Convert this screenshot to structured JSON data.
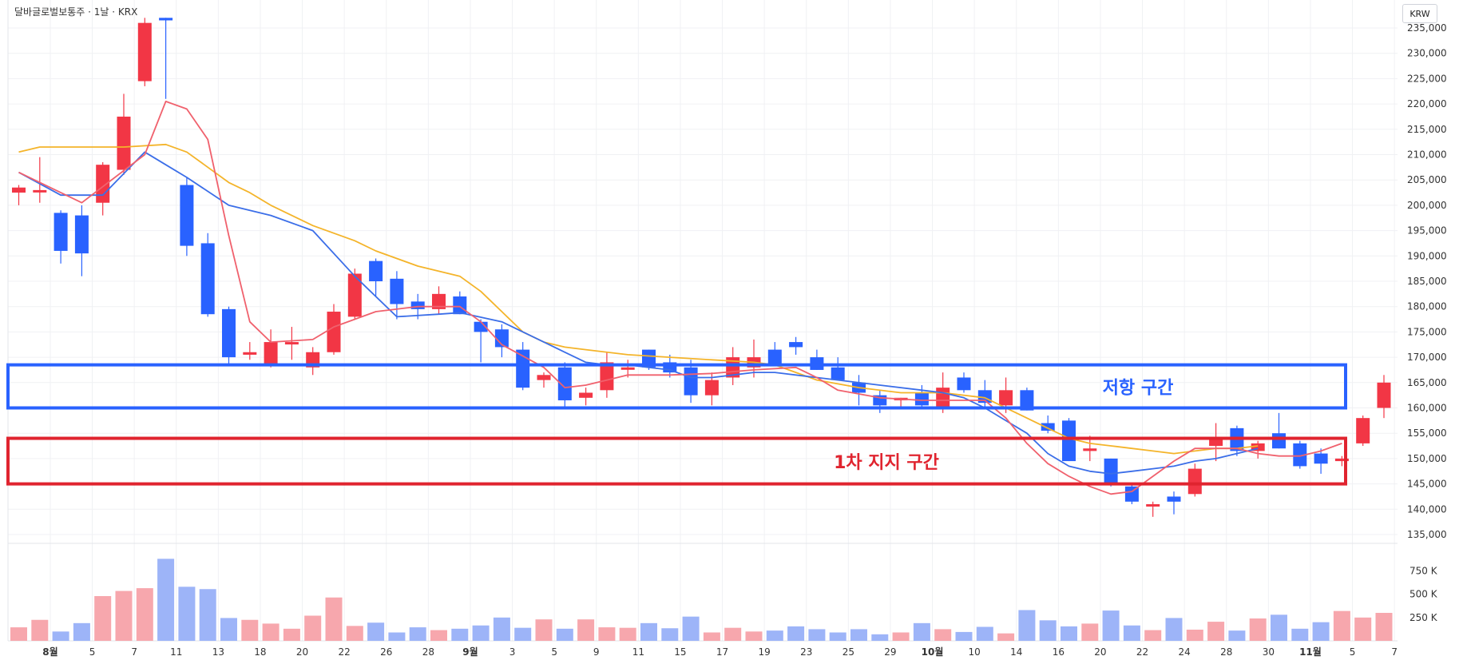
{
  "header": {
    "title": "달바글로벌보통주 · 1날 · KRX",
    "currency": "KRW"
  },
  "colors": {
    "up": "#f23645",
    "down": "#2962ff",
    "vol_up": "#f7a7ad",
    "vol_down": "#9db4f8",
    "ma_red": "#f0616d",
    "ma_blue": "#3b6ee8",
    "ma_yellow": "#f4b42a"
  },
  "chart_data": {
    "type": "candlestick",
    "ylim": [
      133000,
      237000
    ],
    "y_ticks": [
      "235,000",
      "230,000",
      "225,000",
      "220,000",
      "215,000",
      "210,000",
      "205,000",
      "200,000",
      "195,000",
      "190,000",
      "185,000",
      "180,000",
      "175,000",
      "170,000",
      "165,000",
      "160,000",
      "155,000",
      "150,000",
      "145,000",
      "140,000",
      "135,000"
    ],
    "volume_ticks": [
      "750 K",
      "500 K",
      "250 K"
    ],
    "x_ticks": [
      {
        "label": "8월",
        "bold": true,
        "i": 1.5
      },
      {
        "label": "5",
        "i": 3.5
      },
      {
        "label": "7",
        "i": 5.5
      },
      {
        "label": "11",
        "i": 7.5
      },
      {
        "label": "13",
        "i": 9.5
      },
      {
        "label": "18",
        "i": 11.5
      },
      {
        "label": "20",
        "i": 13.5
      },
      {
        "label": "22",
        "i": 15.5
      },
      {
        "label": "26",
        "i": 17.5
      },
      {
        "label": "28",
        "i": 19.5
      },
      {
        "label": "9월",
        "bold": true,
        "i": 21.5
      },
      {
        "label": "3",
        "i": 23.5
      },
      {
        "label": "5",
        "i": 25.5
      },
      {
        "label": "9",
        "i": 27.5
      },
      {
        "label": "11",
        "i": 29.5
      },
      {
        "label": "15",
        "i": 31.5
      },
      {
        "label": "17",
        "i": 33.5
      },
      {
        "label": "19",
        "i": 35.5
      },
      {
        "label": "23",
        "i": 37.5
      },
      {
        "label": "25",
        "i": 39.5
      },
      {
        "label": "29",
        "i": 41.5
      },
      {
        "label": "10월",
        "bold": true,
        "i": 43.5
      },
      {
        "label": "10",
        "i": 45.5
      },
      {
        "label": "14",
        "i": 47.5
      },
      {
        "label": "16",
        "i": 49.5
      },
      {
        "label": "20",
        "i": 51.5
      },
      {
        "label": "22",
        "i": 53.5
      },
      {
        "label": "24",
        "i": 55.5
      },
      {
        "label": "28",
        "i": 57.5
      },
      {
        "label": "30",
        "i": 59.5
      },
      {
        "label": "11월",
        "bold": true,
        "i": 61.5
      },
      {
        "label": "5",
        "i": 63.5
      },
      {
        "label": "7",
        "i": 65.5
      }
    ],
    "candles": [
      [
        202500,
        204000,
        200000,
        203500
      ],
      [
        203000,
        209500,
        200500,
        203000
      ],
      [
        198500,
        199000,
        188500,
        191000
      ],
      [
        198000,
        200000,
        186000,
        190500
      ],
      [
        200500,
        208500,
        198000,
        208000
      ],
      [
        207000,
        222000,
        206000,
        217500
      ],
      [
        224500,
        237000,
        223500,
        236000
      ],
      [
        237000,
        237000,
        221000,
        236500
      ],
      [
        204000,
        205500,
        190000,
        192000
      ],
      [
        192500,
        194500,
        178000,
        178500
      ],
      [
        179500,
        180000,
        168500,
        170000
      ],
      [
        170500,
        173000,
        169500,
        171000
      ],
      [
        168500,
        175500,
        168000,
        173000
      ],
      [
        173000,
        176000,
        169500,
        173000
      ],
      [
        168000,
        172000,
        166500,
        171000
      ],
      [
        171000,
        180500,
        170500,
        179000
      ],
      [
        178000,
        187500,
        177500,
        186500
      ],
      [
        189000,
        189500,
        182000,
        185000
      ],
      [
        185500,
        187000,
        177500,
        180500
      ],
      [
        181000,
        182500,
        177500,
        179500
      ],
      [
        179500,
        184000,
        178500,
        182500
      ],
      [
        182000,
        183000,
        178500,
        178500
      ],
      [
        177000,
        177500,
        169000,
        175000
      ],
      [
        175500,
        176500,
        170000,
        172000
      ],
      [
        171500,
        173000,
        163500,
        164000
      ],
      [
        165500,
        167000,
        164000,
        166500
      ],
      [
        168000,
        169000,
        160000,
        161500
      ],
      [
        162000,
        164000,
        160500,
        163000
      ],
      [
        163500,
        171000,
        162000,
        169000
      ],
      [
        168000,
        169500,
        166000,
        168000
      ],
      [
        171500,
        171500,
        167500,
        168000
      ],
      [
        169000,
        170500,
        166000,
        167000
      ],
      [
        168000,
        169500,
        161000,
        162500
      ],
      [
        162500,
        167000,
        160500,
        165500
      ],
      [
        166000,
        172000,
        164500,
        170000
      ],
      [
        168000,
        173500,
        166000,
        170000
      ],
      [
        171500,
        173000,
        168500,
        168500
      ],
      [
        173000,
        174000,
        170500,
        172000
      ],
      [
        170000,
        171500,
        167500,
        167500
      ],
      [
        168000,
        170000,
        165500,
        165500
      ],
      [
        165000,
        166500,
        160500,
        163000
      ],
      [
        162500,
        163500,
        159000,
        160500
      ],
      [
        161500,
        162000,
        160000,
        162000
      ],
      [
        163000,
        164500,
        160000,
        160500
      ],
      [
        160000,
        167000,
        159000,
        164000
      ],
      [
        166000,
        167000,
        163000,
        163500
      ],
      [
        163500,
        165500,
        160000,
        161000
      ],
      [
        160500,
        166000,
        159000,
        163500
      ],
      [
        163500,
        164000,
        159500,
        159500
      ],
      [
        157000,
        158500,
        155000,
        155500
      ],
      [
        157500,
        158000,
        149500,
        149500
      ],
      [
        151500,
        154500,
        149500,
        152000
      ],
      [
        150000,
        150000,
        144500,
        145000
      ],
      [
        144500,
        145000,
        141000,
        141500
      ],
      [
        141000,
        141500,
        138500,
        141000
      ],
      [
        142500,
        143500,
        139000,
        141500
      ],
      [
        143000,
        149000,
        142500,
        148000
      ],
      [
        152500,
        157000,
        149500,
        154000
      ],
      [
        156000,
        156500,
        150500,
        151500
      ],
      [
        151500,
        153500,
        150000,
        153000
      ],
      [
        155000,
        159000,
        152000,
        152000
      ],
      [
        153000,
        153500,
        148000,
        148500
      ],
      [
        151000,
        152000,
        147000,
        149000
      ],
      [
        149500,
        150500,
        148500,
        150000
      ],
      [
        153000,
        158500,
        152500,
        158000
      ],
      [
        160000,
        166500,
        158000,
        165000
      ]
    ],
    "volumes": [
      145000,
      225000,
      100000,
      190000,
      480000,
      535000,
      565000,
      880000,
      580000,
      555000,
      245000,
      225000,
      185000,
      130000,
      270000,
      465000,
      160000,
      195000,
      90000,
      145000,
      115000,
      130000,
      165000,
      250000,
      140000,
      230000,
      130000,
      230000,
      145000,
      140000,
      190000,
      135000,
      260000,
      90000,
      140000,
      100000,
      110000,
      155000,
      125000,
      90000,
      125000,
      70000,
      90000,
      190000,
      125000,
      95000,
      150000,
      80000,
      330000,
      220000,
      155000,
      185000,
      325000,
      165000,
      115000,
      245000,
      120000,
      205000,
      110000,
      240000,
      280000,
      130000,
      200000,
      320000,
      250000,
      300000
    ],
    "ma_short": [
      [
        0,
        206500
      ],
      [
        3,
        200500
      ],
      [
        6,
        210000
      ],
      [
        7,
        220500
      ],
      [
        8,
        219000
      ],
      [
        9,
        213000
      ],
      [
        10,
        194000
      ],
      [
        11,
        177000
      ],
      [
        12,
        173000
      ],
      [
        14,
        173500
      ],
      [
        15,
        176000
      ],
      [
        17,
        179000
      ],
      [
        19,
        180000
      ],
      [
        21,
        180000
      ],
      [
        22,
        177000
      ],
      [
        23,
        172500
      ],
      [
        25,
        168000
      ],
      [
        26,
        164000
      ],
      [
        27,
        164500
      ],
      [
        29,
        166500
      ],
      [
        31,
        166500
      ],
      [
        33,
        166800
      ],
      [
        35,
        167500
      ],
      [
        37,
        168000
      ],
      [
        38,
        166000
      ],
      [
        39,
        163500
      ],
      [
        41,
        162000
      ],
      [
        43,
        161500
      ],
      [
        45,
        161500
      ],
      [
        46,
        161500
      ],
      [
        47,
        158000
      ],
      [
        48,
        153000
      ],
      [
        49,
        149000
      ],
      [
        50,
        146500
      ],
      [
        51,
        144500
      ],
      [
        52,
        143000
      ],
      [
        53,
        143500
      ],
      [
        54,
        146500
      ],
      [
        55,
        149500
      ],
      [
        56,
        152000
      ],
      [
        58,
        152000
      ],
      [
        59,
        151000
      ],
      [
        60,
        150500
      ],
      [
        61,
        150500
      ],
      [
        62,
        151500
      ],
      [
        63,
        153000
      ]
    ],
    "ma_mid": [
      [
        0,
        206500
      ],
      [
        2,
        202000
      ],
      [
        4,
        202000
      ],
      [
        6,
        210500
      ],
      [
        7,
        208000
      ],
      [
        8,
        205500
      ],
      [
        10,
        200000
      ],
      [
        12,
        198000
      ],
      [
        14,
        195000
      ],
      [
        16,
        186000
      ],
      [
        18,
        178000
      ],
      [
        20,
        178500
      ],
      [
        21,
        178800
      ],
      [
        23,
        177000
      ],
      [
        25,
        173000
      ],
      [
        26,
        171000
      ],
      [
        27,
        169000
      ],
      [
        28,
        168500
      ],
      [
        29,
        168500
      ],
      [
        30,
        168000
      ],
      [
        31,
        167500
      ],
      [
        32,
        166000
      ],
      [
        33,
        166000
      ],
      [
        34,
        166500
      ],
      [
        35,
        167000
      ],
      [
        36,
        167000
      ],
      [
        38,
        166000
      ],
      [
        39,
        165500
      ],
      [
        41,
        164500
      ],
      [
        43,
        163500
      ],
      [
        44,
        163000
      ],
      [
        45,
        162000
      ],
      [
        46,
        160000
      ],
      [
        47,
        157500
      ],
      [
        48,
        155000
      ],
      [
        49,
        151000
      ],
      [
        50,
        148500
      ],
      [
        51,
        147500
      ],
      [
        52,
        147000
      ],
      [
        53,
        147500
      ],
      [
        54,
        148000
      ],
      [
        55,
        148500
      ],
      [
        56,
        149500
      ],
      [
        57,
        150000
      ],
      [
        58,
        151000
      ],
      [
        59,
        152000
      ]
    ],
    "ma_long": [
      [
        0,
        210500
      ],
      [
        1,
        211500
      ],
      [
        3,
        211500
      ],
      [
        5,
        211500
      ],
      [
        7,
        212000
      ],
      [
        8,
        210500
      ],
      [
        9,
        207500
      ],
      [
        10,
        204500
      ],
      [
        11,
        202500
      ],
      [
        12,
        200000
      ],
      [
        14,
        196000
      ],
      [
        16,
        193000
      ],
      [
        17,
        191000
      ],
      [
        19,
        188000
      ],
      [
        21,
        186000
      ],
      [
        22,
        183000
      ],
      [
        23,
        179000
      ],
      [
        24,
        175000
      ],
      [
        25,
        173000
      ],
      [
        26,
        172000
      ],
      [
        27,
        171500
      ],
      [
        29,
        170500
      ],
      [
        31,
        170000
      ],
      [
        33,
        169500
      ],
      [
        35,
        169000
      ],
      [
        36,
        168500
      ],
      [
        37,
        167000
      ],
      [
        38,
        165500
      ],
      [
        40,
        164000
      ],
      [
        42,
        163000
      ],
      [
        44,
        163000
      ],
      [
        46,
        162000
      ],
      [
        48,
        158000
      ],
      [
        49,
        156000
      ],
      [
        50,
        154000
      ],
      [
        51,
        153000
      ],
      [
        52,
        152500
      ],
      [
        53,
        152000
      ],
      [
        54,
        151500
      ],
      [
        55,
        151000
      ],
      [
        56,
        151500
      ],
      [
        57,
        152000
      ],
      [
        58,
        152000
      ],
      [
        59,
        152500
      ]
    ],
    "zones": [
      {
        "label": "저항 구간",
        "top": 168500,
        "bottom": 160000,
        "color": "#2962ff"
      },
      {
        "label": "1차 지지 구간",
        "top": 154000,
        "bottom": 145000,
        "color": "#e0242f"
      }
    ]
  }
}
